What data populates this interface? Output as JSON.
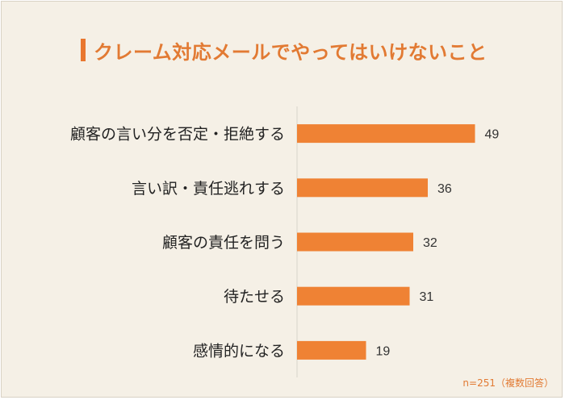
{
  "title": "クレーム対応メールでやってはいけないこと",
  "note": "n=251（複数回答）",
  "colors": {
    "bar": "#ef8234",
    "title": "#e27a33",
    "background": "#f5f0e6",
    "axis": "#d8d3ca"
  },
  "chart_data": {
    "type": "bar",
    "orientation": "horizontal",
    "title": "クレーム対応メールでやってはいけないこと",
    "categories": [
      "顧客の言い分を否定・拒絶する",
      "言い訳・責任逃れする",
      "顧客の責任を問う",
      "待たせる",
      "感情的になる"
    ],
    "values": [
      49,
      36,
      32,
      31,
      19
    ],
    "xlim": [
      0,
      60
    ],
    "grid": false,
    "legend": "none"
  }
}
